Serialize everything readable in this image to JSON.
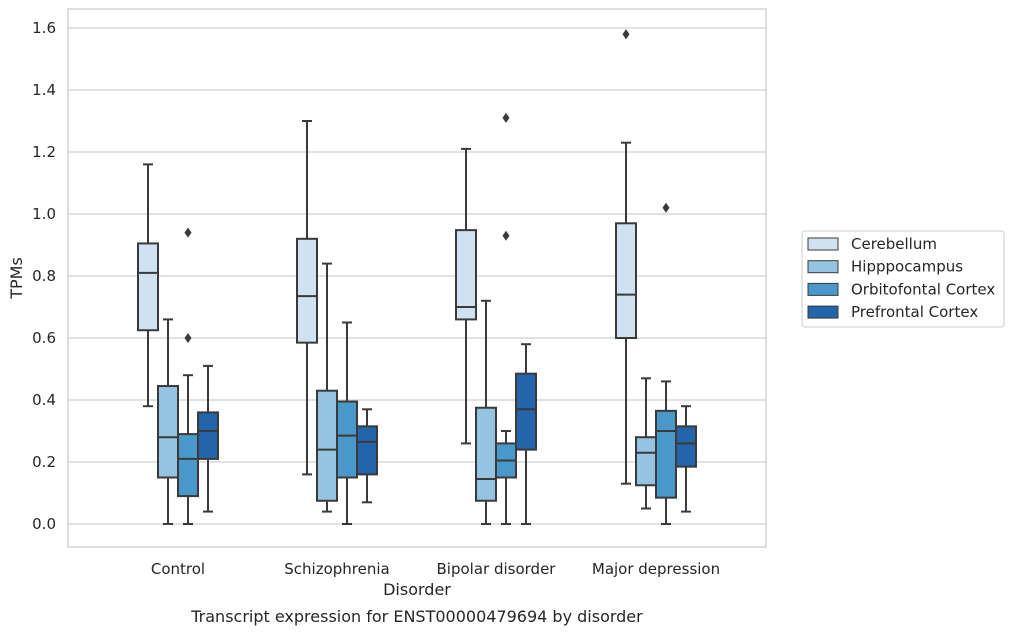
{
  "chart_data": {
    "type": "boxplot",
    "xlabel": "Disorder",
    "ylabel": "TPMs",
    "caption": "Transcript expression for ENST00000479694 by disorder",
    "ylim": [
      -0.075,
      1.66
    ],
    "yticks": [
      0.0,
      0.2,
      0.4,
      0.6,
      0.8,
      1.0,
      1.2,
      1.4,
      1.6
    ],
    "ytick_labels": [
      "0.0",
      "0.2",
      "0.4",
      "0.6",
      "0.8",
      "1.0",
      "1.2",
      "1.4",
      "1.6"
    ],
    "grid": "horizontal",
    "legend_placement": "right",
    "categories": [
      "Control",
      "Schizophrenia",
      "Bipolar disorder",
      "Major depression"
    ],
    "series": [
      {
        "name": "Cerebellum",
        "color": "#d0e1f2",
        "boxes": [
          {
            "whislo": 0.38,
            "q1": 0.625,
            "med": 0.81,
            "q3": 0.905,
            "whishi": 1.16,
            "fliers": []
          },
          {
            "whislo": 0.16,
            "q1": 0.585,
            "med": 0.735,
            "q3": 0.92,
            "whishi": 1.3,
            "fliers": []
          },
          {
            "whislo": 0.26,
            "q1": 0.66,
            "med": 0.7,
            "q3": 0.948,
            "whishi": 1.21,
            "fliers": []
          },
          {
            "whislo": 0.13,
            "q1": 0.6,
            "med": 0.74,
            "q3": 0.97,
            "whishi": 1.23,
            "fliers": [
              1.58
            ]
          }
        ]
      },
      {
        "name": "Hipppocampus",
        "color": "#94c4df",
        "boxes": [
          {
            "whislo": 0.0,
            "q1": 0.15,
            "med": 0.28,
            "q3": 0.445,
            "whishi": 0.66,
            "fliers": []
          },
          {
            "whislo": 0.04,
            "q1": 0.075,
            "med": 0.24,
            "q3": 0.43,
            "whishi": 0.84,
            "fliers": []
          },
          {
            "whislo": 0.0,
            "q1": 0.075,
            "med": 0.145,
            "q3": 0.375,
            "whishi": 0.72,
            "fliers": []
          },
          {
            "whislo": 0.05,
            "q1": 0.125,
            "med": 0.23,
            "q3": 0.28,
            "whishi": 0.47,
            "fliers": []
          }
        ]
      },
      {
        "name": "Orbitofontal Cortex",
        "color": "#4a98c9",
        "boxes": [
          {
            "whislo": 0.0,
            "q1": 0.09,
            "med": 0.21,
            "q3": 0.29,
            "whishi": 0.48,
            "fliers": [
              0.6,
              0.94
            ]
          },
          {
            "whislo": 0.0,
            "q1": 0.15,
            "med": 0.285,
            "q3": 0.395,
            "whishi": 0.65,
            "fliers": []
          },
          {
            "whislo": 0.0,
            "q1": 0.15,
            "med": 0.205,
            "q3": 0.26,
            "whishi": 0.3,
            "fliers": [
              0.93,
              1.31
            ]
          },
          {
            "whislo": 0.0,
            "q1": 0.085,
            "med": 0.3,
            "q3": 0.365,
            "whishi": 0.46,
            "fliers": [
              1.02
            ]
          }
        ]
      },
      {
        "name": "Prefrontal Cortex",
        "color": "#2464ab",
        "boxes": [
          {
            "whislo": 0.04,
            "q1": 0.21,
            "med": 0.3,
            "q3": 0.36,
            "whishi": 0.51,
            "fliers": []
          },
          {
            "whislo": 0.07,
            "q1": 0.16,
            "med": 0.265,
            "q3": 0.315,
            "whishi": 0.37,
            "fliers": []
          },
          {
            "whislo": 0.0,
            "q1": 0.24,
            "med": 0.37,
            "q3": 0.485,
            "whishi": 0.58,
            "fliers": []
          },
          {
            "whislo": 0.04,
            "q1": 0.185,
            "med": 0.26,
            "q3": 0.315,
            "whishi": 0.38,
            "fliers": []
          }
        ]
      }
    ]
  }
}
